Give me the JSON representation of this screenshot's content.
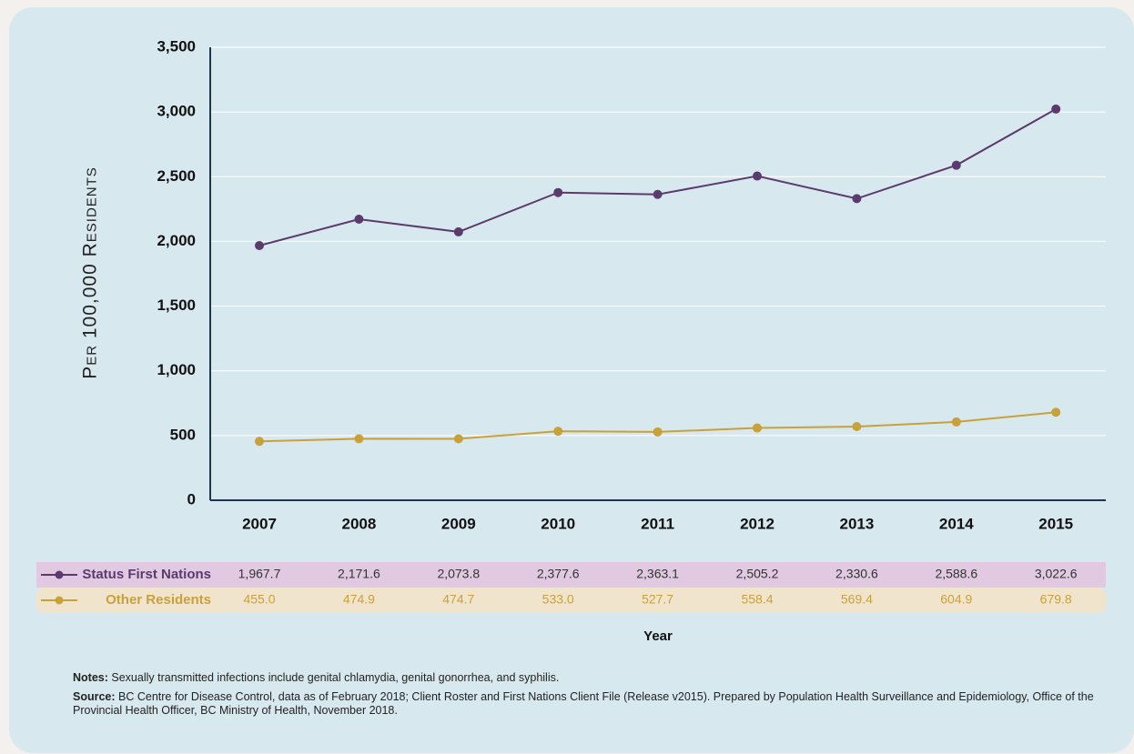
{
  "chart_data": {
    "type": "line",
    "y_label": "Per 100,000 Residents",
    "x_label": "Year",
    "categories": [
      "2007",
      "2008",
      "2009",
      "2010",
      "2011",
      "2012",
      "2013",
      "2014",
      "2015"
    ],
    "series": [
      {
        "name": "Status First Nations",
        "color": "#5b3a6e",
        "row_color": "#e2c9e2",
        "values": [
          1967.7,
          2171.6,
          2073.8,
          2377.6,
          2363.1,
          2505.2,
          2330.6,
          2588.6,
          3022.6
        ],
        "value_labels": [
          "1,967.7",
          "2,171.6",
          "2,073.8",
          "2,377.6",
          "2,363.1",
          "2,505.2",
          "2,330.6",
          "2,588.6",
          "3,022.6"
        ]
      },
      {
        "name": "Other Residents",
        "color": "#c9a13a",
        "row_color": "#f1e4cd",
        "values": [
          455.0,
          474.9,
          474.7,
          533.0,
          527.7,
          558.4,
          569.4,
          604.9,
          679.8
        ],
        "value_labels": [
          "455.0",
          "474.9",
          "474.7",
          "533.0",
          "527.7",
          "558.4",
          "569.4",
          "604.9",
          "679.8"
        ]
      }
    ],
    "ylim": [
      0,
      3500
    ],
    "yticks": [
      0,
      500,
      {
        "value": 1000,
        "label": "1,000"
      },
      {
        "value": 1500,
        "label": "1,500"
      },
      {
        "value": 2000,
        "label": "2,000"
      },
      {
        "value": 2500,
        "label": "2,500"
      },
      {
        "value": 3000,
        "label": "3,000"
      },
      {
        "value": 3500,
        "label": "3,500"
      }
    ],
    "grid": true
  },
  "notes": {
    "label": "Notes:",
    "text": "Sexually transmitted infections include genital chlamydia, genital gonorrhea, and syphilis."
  },
  "source": {
    "label": "Source:",
    "text": "BC Centre for Disease Control, data as of February 2018; Client Roster and First Nations Client File (Release v2015). Prepared by Population Health Surveillance and Epidemiology, Office of the Provincial Health Officer, BC Ministry of Health, November 2018."
  }
}
